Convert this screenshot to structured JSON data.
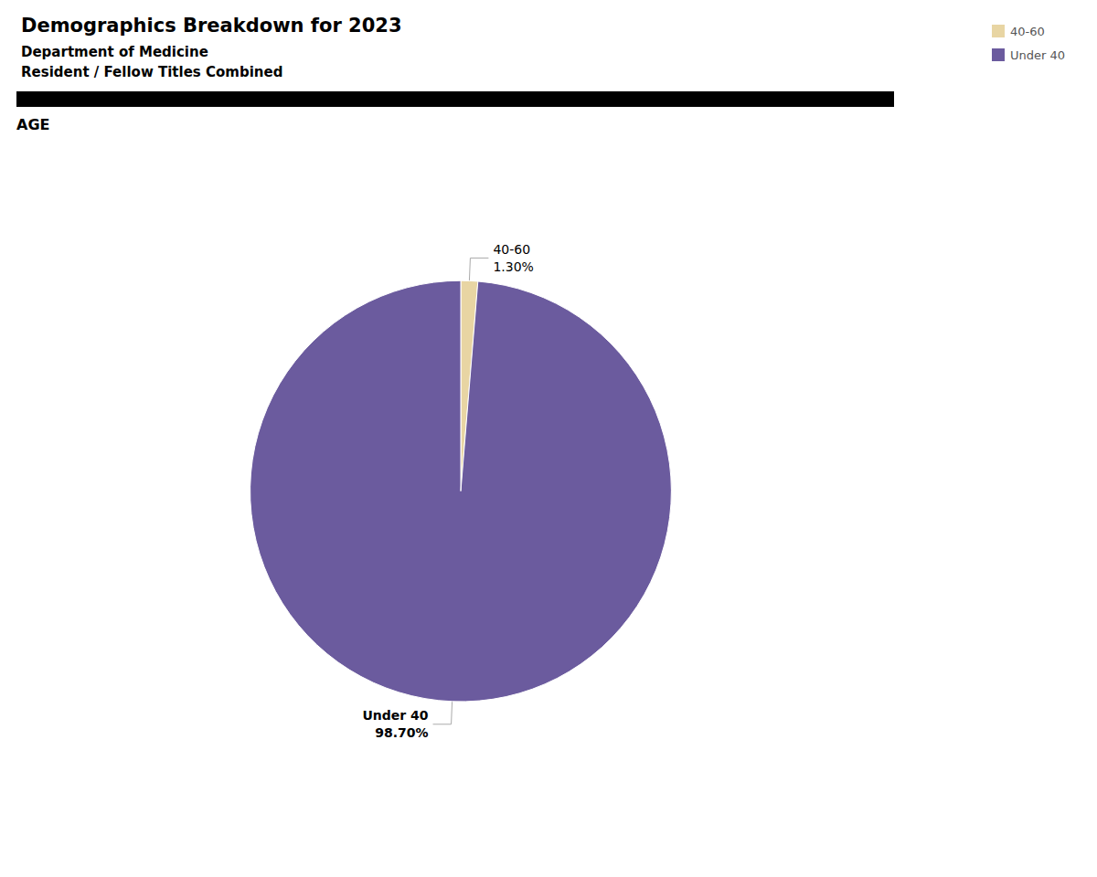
{
  "chart_data": {
    "type": "pie",
    "title": "Demographics Breakdown for 2023",
    "subtitle": [
      "Department of Medicine",
      "Resident / Fellow Titles Combined"
    ],
    "annotations": [
      "AGE"
    ],
    "categories": [
      "40-60",
      "Under 40"
    ],
    "values": [
      1.3,
      98.7
    ],
    "value_labels": [
      "1.30%",
      "98.70%"
    ],
    "colors": [
      "#e8d5a3",
      "#6b5b9e"
    ],
    "data_labels": true,
    "legend": "upper right"
  }
}
